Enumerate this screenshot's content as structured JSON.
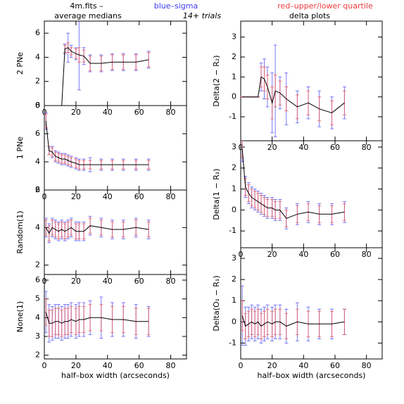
{
  "header": {
    "file": "4m.fits  –",
    "blue": "blue–sigma",
    "red": "red–upper/lower quartile",
    "left": "average medians",
    "trials": "14+ trials",
    "right": "delta plots"
  },
  "chart_data": [
    {
      "type": "line",
      "y_label": "2 PNe",
      "xlim": [
        0,
        90
      ],
      "xticks": [
        0,
        20,
        40,
        60,
        80
      ],
      "ylim": [
        0,
        7
      ],
      "yticks": [
        0,
        2,
        4,
        6
      ],
      "x": [
        1,
        3,
        5,
        7,
        9,
        11,
        13,
        15,
        17,
        20,
        22,
        25,
        29,
        36,
        43,
        50,
        58,
        66
      ],
      "values": [
        0,
        0,
        0,
        0,
        0,
        0,
        4.7,
        4.8,
        4.5,
        4.3,
        4.2,
        4.1,
        3.5,
        3.5,
        3.6,
        3.6,
        3.6,
        3.8
      ],
      "sigma": [
        0,
        0,
        0,
        0,
        0,
        0,
        0.4,
        1.2,
        0.5,
        0.5,
        2.9,
        0.7,
        0.7,
        0.7,
        0.7,
        0.7,
        0.7,
        0.7
      ],
      "quartile": [
        0,
        0,
        0,
        0,
        0,
        0,
        0.3,
        0.4,
        0.3,
        0.4,
        0.6,
        0.5,
        0.6,
        0.6,
        0.6,
        0.6,
        0.6,
        0.6
      ]
    },
    {
      "type": "line",
      "y_label": "1 PNe",
      "xlim": [
        0,
        90
      ],
      "xticks": [
        0,
        20,
        40,
        60,
        80
      ],
      "ylim": [
        2,
        8
      ],
      "yticks": [
        2,
        4,
        6,
        8
      ],
      "x": [
        1,
        3,
        5,
        7,
        9,
        11,
        13,
        15,
        17,
        20,
        22,
        25,
        29,
        36,
        43,
        50,
        58,
        66
      ],
      "values": [
        6.9,
        4.8,
        4.7,
        4.4,
        4.3,
        4.2,
        4.2,
        4.1,
        4.0,
        3.9,
        3.8,
        3.8,
        3.8,
        3.8,
        3.8,
        3.8,
        3.8,
        3.8
      ],
      "sigma": [
        0.6,
        0.3,
        0.4,
        0.4,
        0.4,
        0.4,
        0.4,
        0.4,
        0.4,
        0.4,
        0.4,
        0.4,
        0.5,
        0.4,
        0.4,
        0.4,
        0.4,
        0.4
      ],
      "quartile": [
        0.5,
        0.3,
        0.3,
        0.3,
        0.3,
        0.3,
        0.3,
        0.3,
        0.3,
        0.3,
        0.3,
        0.3,
        0.3,
        0.3,
        0.3,
        0.3,
        0.3,
        0.3
      ]
    },
    {
      "type": "line",
      "y_label": "Random(1)",
      "xlim": [
        0,
        90
      ],
      "xticks": [
        0,
        20,
        40,
        60,
        80
      ],
      "ylim": [
        1.5,
        6
      ],
      "yticks": [
        2,
        4,
        6
      ],
      "x": [
        1,
        3,
        5,
        7,
        9,
        11,
        13,
        15,
        17,
        20,
        22,
        25,
        29,
        36,
        43,
        50,
        58,
        66
      ],
      "values": [
        4.0,
        3.7,
        4.0,
        3.9,
        3.8,
        3.9,
        3.8,
        3.9,
        4.0,
        3.8,
        3.8,
        3.8,
        4.1,
        4.0,
        3.9,
        3.9,
        4.0,
        3.9
      ],
      "sigma": [
        0.5,
        0.5,
        0.5,
        0.5,
        0.5,
        0.5,
        0.5,
        0.5,
        0.5,
        0.5,
        0.5,
        0.5,
        0.5,
        0.5,
        0.5,
        0.5,
        0.5,
        0.5
      ],
      "quartile": [
        0.4,
        0.4,
        0.4,
        0.4,
        0.4,
        0.4,
        0.4,
        0.4,
        0.4,
        0.4,
        0.4,
        0.4,
        0.4,
        0.4,
        0.4,
        0.4,
        0.4,
        0.4
      ]
    },
    {
      "type": "line",
      "y_label": "None(1)",
      "x_label": "half–box width (arcseconds)",
      "xlim": [
        0,
        90
      ],
      "xticks": [
        0,
        20,
        40,
        60,
        80
      ],
      "ylim": [
        1.8,
        6.3
      ],
      "yticks": [
        2,
        3,
        4,
        5,
        6
      ],
      "x": [
        1,
        3,
        5,
        7,
        9,
        11,
        13,
        15,
        17,
        20,
        22,
        25,
        29,
        36,
        43,
        50,
        58,
        66
      ],
      "values": [
        4.3,
        3.7,
        3.7,
        3.8,
        3.8,
        3.7,
        3.8,
        3.8,
        3.9,
        3.8,
        3.9,
        3.9,
        4.0,
        4.0,
        3.9,
        3.9,
        3.8,
        3.8
      ],
      "sigma": [
        1.1,
        1.0,
        0.9,
        0.9,
        0.9,
        0.9,
        0.9,
        0.9,
        0.9,
        0.9,
        0.9,
        0.9,
        0.9,
        1.1,
        0.9,
        0.9,
        0.9,
        0.8
      ],
      "quartile": [
        0.7,
        0.7,
        0.7,
        0.7,
        0.7,
        0.7,
        0.7,
        0.7,
        0.7,
        0.7,
        0.7,
        0.7,
        0.7,
        0.7,
        0.7,
        0.7,
        0.7,
        0.7
      ]
    },
    {
      "type": "line",
      "y_label": "Delta(2 − R₂)",
      "xlim": [
        0,
        90
      ],
      "xticks": [
        0,
        20,
        40,
        60,
        80
      ],
      "ylim": [
        -2.2,
        3.8
      ],
      "yticks": [
        -1,
        0,
        1,
        2,
        3
      ],
      "x": [
        1,
        3,
        5,
        7,
        9,
        11,
        13,
        15,
        17,
        20,
        22,
        25,
        29,
        36,
        43,
        50,
        58,
        66
      ],
      "values": [
        0,
        0,
        0,
        0,
        0,
        0,
        1.0,
        0.9,
        0.5,
        -0.3,
        0.3,
        0.2,
        -0.1,
        -0.5,
        -0.3,
        -0.6,
        -0.8,
        -0.3
      ],
      "sigma": [
        0,
        0,
        0,
        0,
        0,
        0,
        0.7,
        1.0,
        1.0,
        1.5,
        2.3,
        0.8,
        1.3,
        0.8,
        0.8,
        0.9,
        0.8,
        0.8
      ],
      "quartile": [
        0,
        0,
        0,
        0,
        0,
        0,
        0.5,
        0.6,
        0.6,
        0.8,
        0.8,
        0.6,
        0.6,
        0.6,
        0.6,
        0.6,
        0.6,
        0.6
      ]
    },
    {
      "type": "line",
      "y_label": "Delta(1 − R₁)",
      "xlim": [
        0,
        90
      ],
      "xticks": [
        0,
        20,
        40,
        60,
        80
      ],
      "ylim": [
        -1.8,
        3.3
      ],
      "yticks": [
        -1,
        0,
        1,
        2,
        3
      ],
      "x": [
        1,
        3,
        5,
        7,
        9,
        11,
        13,
        15,
        17,
        20,
        22,
        25,
        29,
        36,
        43,
        50,
        58,
        66
      ],
      "values": [
        2.9,
        1.1,
        0.8,
        0.6,
        0.5,
        0.4,
        0.3,
        0.2,
        0.1,
        0.1,
        0.0,
        0.0,
        -0.4,
        -0.2,
        -0.1,
        -0.2,
        -0.2,
        -0.1
      ],
      "sigma": [
        0.6,
        0.5,
        0.5,
        0.5,
        0.5,
        0.5,
        0.5,
        0.5,
        0.5,
        0.5,
        0.5,
        0.5,
        0.5,
        0.5,
        0.5,
        0.5,
        0.5,
        0.5
      ],
      "quartile": [
        0.4,
        0.4,
        0.4,
        0.4,
        0.4,
        0.4,
        0.4,
        0.4,
        0.4,
        0.4,
        0.4,
        0.4,
        0.4,
        0.4,
        0.4,
        0.4,
        0.4,
        0.4
      ]
    },
    {
      "type": "line",
      "y_label": "Delta(O₁ − R₁)",
      "x_label": "half–box width (arcseconds)",
      "xlim": [
        0,
        90
      ],
      "xticks": [
        0,
        20,
        40,
        60,
        80
      ],
      "ylim": [
        -1.75,
        3.5
      ],
      "yticks": [
        -1,
        0,
        1,
        2,
        3
      ],
      "x": [
        1,
        3,
        5,
        7,
        9,
        11,
        13,
        15,
        17,
        20,
        22,
        25,
        29,
        36,
        43,
        50,
        58,
        66
      ],
      "values": [
        0.3,
        -0.2,
        -0.1,
        0.0,
        -0.1,
        0.0,
        -0.2,
        -0.1,
        0.0,
        -0.1,
        0.0,
        0.0,
        -0.2,
        0.0,
        -0.1,
        -0.1,
        -0.1,
        0.0
      ],
      "sigma": [
        1.4,
        0.9,
        0.8,
        0.8,
        0.8,
        0.8,
        0.8,
        0.8,
        0.8,
        0.8,
        0.8,
        0.8,
        0.8,
        0.9,
        0.8,
        0.7,
        0.7,
        0.6
      ],
      "quartile": [
        0.7,
        0.6,
        0.6,
        0.6,
        0.6,
        0.6,
        0.6,
        0.6,
        0.6,
        0.6,
        0.6,
        0.6,
        0.6,
        0.6,
        0.6,
        0.6,
        0.6,
        0.6
      ]
    }
  ]
}
